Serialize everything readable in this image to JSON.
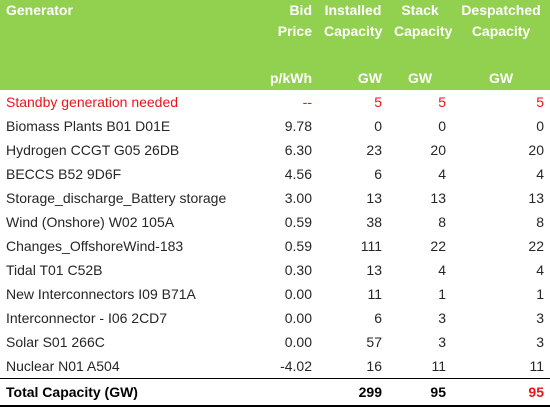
{
  "header": {
    "generator": "Generator",
    "bid_price_line1": "Bid",
    "bid_price_line2": "Price",
    "installed_line1": "Installed",
    "installed_line2": "Capacity",
    "stack_line1": "Stack",
    "stack_line2": "Capacity",
    "despatched_line1": "Despatched",
    "despatched_line2": "Capacity",
    "unit_price": "p/kWh",
    "unit_installed": "GW",
    "unit_stack": "GW",
    "unit_despatched": "GW"
  },
  "standby": {
    "name": "Standby generation needed",
    "price": "--",
    "installed": "5",
    "stack": "5",
    "despatched": "5"
  },
  "rows": [
    {
      "name": "Biomass Plants B01 D01E",
      "price": "9.78",
      "installed": "0",
      "stack": "0",
      "despatched": "0"
    },
    {
      "name": "Hydrogen CCGT G05 26DB",
      "price": "6.30",
      "installed": "23",
      "stack": "20",
      "despatched": "20"
    },
    {
      "name": "BECCS B52 9D6F",
      "price": "4.56",
      "installed": "6",
      "stack": "4",
      "despatched": "4"
    },
    {
      "name": "Storage_discharge_Battery storage",
      "price": "3.00",
      "installed": "13",
      "stack": "13",
      "despatched": "13"
    },
    {
      "name": "Wind (Onshore) W02 105A",
      "price": "0.59",
      "installed": "38",
      "stack": "8",
      "despatched": "8"
    },
    {
      "name": "Changes_OffshoreWind-183",
      "price": "0.59",
      "installed": "111",
      "stack": "22",
      "despatched": "22"
    },
    {
      "name": "Tidal T01 C52B",
      "price": "0.30",
      "installed": "13",
      "stack": "4",
      "despatched": "4"
    },
    {
      "name": "New Interconnectors I09 B71A",
      "price": "0.00",
      "installed": "11",
      "stack": "1",
      "despatched": "1"
    },
    {
      "name": "Interconnector -  I06 2CD7",
      "price": "0.00",
      "installed": "6",
      "stack": "3",
      "despatched": "3"
    },
    {
      "name": "Solar S01 266C",
      "price": "0.00",
      "installed": "57",
      "stack": "3",
      "despatched": "3"
    },
    {
      "name": "Nuclear N01 A504",
      "price": "-4.02",
      "installed": "16",
      "stack": "11",
      "despatched": "11"
    }
  ],
  "total": {
    "label": "Total Capacity (GW)",
    "installed": "299",
    "stack": "95",
    "despatched": "95"
  },
  "colors": {
    "header_bg": "#92d050",
    "header_text": "#ffffff",
    "alert_red": "#e8161b"
  }
}
